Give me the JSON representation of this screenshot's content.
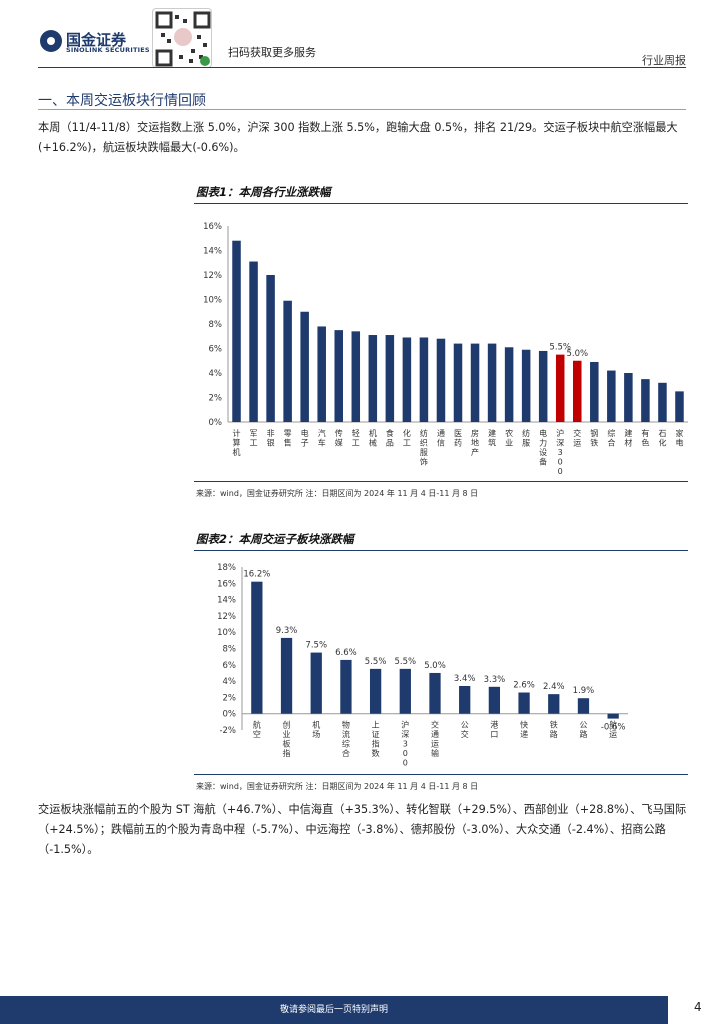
{
  "header": {
    "brand_cn": "国金证券",
    "brand_en": "SINOLINK SECURITIES",
    "qr_note": "扫码获取更多服务",
    "section_tag": "行业周报"
  },
  "section_title": "一、本周交运板块行情回顾",
  "paragraphs": {
    "p1": "本周（11/4-11/8）交运指数上涨 5.0%，沪深 300 指数上涨 5.5%，跑输大盘 0.5%，排名 21/29。交运子板块中航空涨幅最大(+16.2%)，航运板块跌幅最大(-0.6%)。",
    "p2": "交运板块涨幅前五的个股为 ST 海航（+46.7%）、中信海直（+35.3%）、转化智联（+29.5%）、西部创业（+28.8%）、飞马国际（+24.5%）；跌幅前五的个股为青岛中程（-5.7%）、中远海控（-3.8%）、德邦股份（-3.0%）、大众交通（-2.4%）、招商公路（-1.5%）。"
  },
  "figures": {
    "fig1_title": "图表1：本周各行业涨跌幅",
    "fig1_source": "来源：wind，国金证券研究所   注：日期区间为 2024 年 11 月 4 日-11 月 8 日",
    "fig2_title": "图表2：本周交运子板块涨跌幅",
    "fig2_source": "来源：wind，国金证券研究所   注：日期区间为 2024 年 11 月 4 日-11 月 8 日"
  },
  "footer": {
    "note": "敬请参阅最后一页特别声明",
    "page_number": "4"
  },
  "colors": {
    "navy": "#1f3b6e",
    "highlight": "#c00000"
  },
  "chart_data": [
    {
      "type": "bar",
      "title": "图表1：本周各行业涨跌幅",
      "categories": [
        "计算机",
        "军工",
        "非银",
        "零售",
        "电子",
        "汽车",
        "传媒",
        "轻工",
        "机械",
        "食品",
        "化工",
        "纺织服饰",
        "通信",
        "医药",
        "房地产",
        "建筑",
        "农业",
        "纺服",
        "电力设备",
        "沪深300",
        "交运",
        "钢铁",
        "综合",
        "建材",
        "有色",
        "石化",
        "家电"
      ],
      "values": [
        14.8,
        13.1,
        12.0,
        9.9,
        9.0,
        7.8,
        7.5,
        7.4,
        7.1,
        7.1,
        6.9,
        6.9,
        6.8,
        6.4,
        6.4,
        6.4,
        6.1,
        5.9,
        5.8,
        5.5,
        5.0,
        4.9,
        4.2,
        4.0,
        3.5,
        3.2,
        2.5
      ],
      "highlight": [
        "沪深300",
        "交运"
      ],
      "data_labels": {
        "沪深300": "5.5%",
        "交运": "5.0%"
      },
      "ylim": [
        0,
        16
      ],
      "yticks": [
        "0%",
        "2%",
        "4%",
        "6%",
        "8%",
        "10%",
        "12%",
        "14%",
        "16%"
      ],
      "grid": false
    },
    {
      "type": "bar",
      "title": "图表2：本周交运子板块涨跌幅",
      "categories": [
        "航空",
        "创业板指",
        "机场",
        "物流综合",
        "上证指数",
        "沪深300",
        "交通运输",
        "公交",
        "港口",
        "快递",
        "铁路",
        "公路",
        "航运"
      ],
      "values": [
        16.2,
        9.3,
        7.5,
        6.6,
        5.5,
        5.5,
        5.0,
        3.4,
        3.3,
        2.6,
        2.4,
        1.9,
        -0.6
      ],
      "data_labels": [
        "16.2%",
        "9.3%",
        "7.5%",
        "6.6%",
        "5.5%",
        "5.5%",
        "5.0%",
        "3.4%",
        "3.3%",
        "2.6%",
        "2.4%",
        "1.9%",
        "-0.6%"
      ],
      "ylim": [
        -2,
        18
      ],
      "yticks": [
        "-2%",
        "0%",
        "2%",
        "4%",
        "6%",
        "8%",
        "10%",
        "12%",
        "14%",
        "16%",
        "18%"
      ],
      "grid": false
    }
  ]
}
